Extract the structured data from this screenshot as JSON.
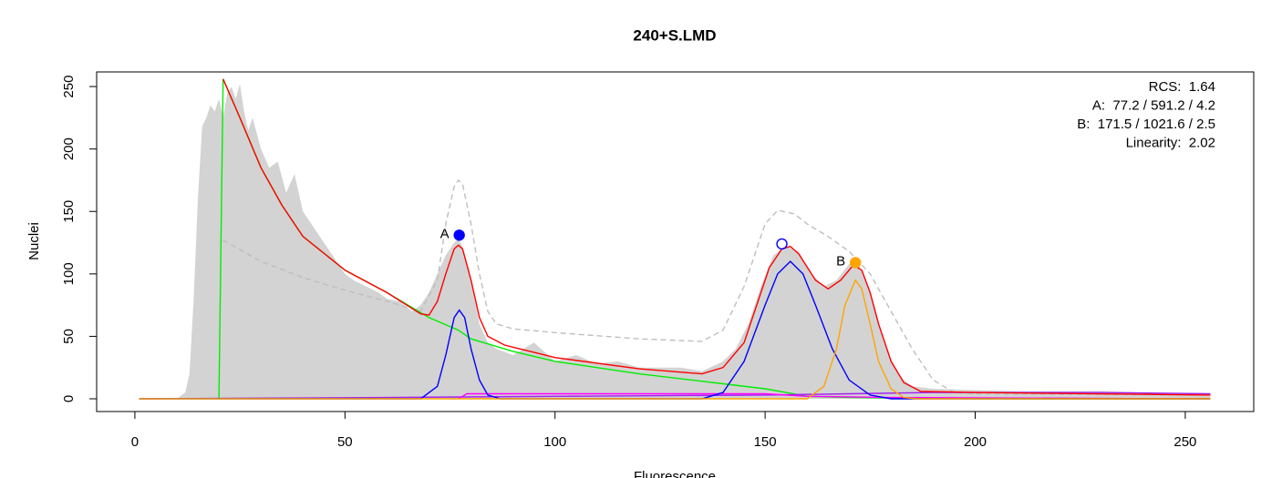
{
  "chart_data": {
    "type": "line",
    "title": "240+S.LMD",
    "x_label": "Fluorescence",
    "y_label": "Nuclei",
    "xlim": [
      -9.1,
      266.3
    ],
    "ylim": [
      -10.2,
      261.7
    ],
    "xticks": [
      0,
      50,
      100,
      150,
      200,
      250
    ],
    "yticks": [
      0,
      50,
      100,
      150,
      200,
      250
    ],
    "series": [
      {
        "style": "area",
        "color": "#d3d3d3",
        "x": [
          0,
          10,
          12,
          13,
          14,
          15,
          16,
          17,
          18,
          19,
          20,
          21,
          22,
          23,
          24,
          25,
          26,
          27,
          28,
          30,
          32,
          34,
          36,
          38,
          40,
          42,
          44,
          46,
          48,
          50,
          52,
          55,
          58,
          60,
          63,
          66,
          68,
          70,
          72,
          74,
          76,
          77,
          78,
          80,
          82,
          84,
          86,
          90,
          95,
          100,
          105,
          110,
          115,
          120,
          125,
          130,
          135,
          140,
          143,
          146,
          149,
          152,
          155,
          158,
          161,
          164,
          167,
          170,
          172,
          174,
          176,
          178,
          180,
          182,
          185,
          190,
          200,
          210,
          220,
          230,
          240,
          250,
          256
        ],
        "values": [
          0,
          0,
          5,
          20,
          80,
          160,
          218,
          225,
          235,
          230,
          240,
          225,
          245,
          250,
          240,
          252,
          230,
          215,
          225,
          200,
          185,
          190,
          165,
          180,
          150,
          140,
          130,
          120,
          110,
          100,
          95,
          90,
          85,
          80,
          78,
          70,
          75,
          85,
          100,
          115,
          125,
          128,
          122,
          95,
          60,
          45,
          40,
          35,
          45,
          30,
          35,
          28,
          30,
          25,
          25,
          25,
          22,
          30,
          40,
          60,
          90,
          115,
          122,
          118,
          100,
          90,
          95,
          108,
          110,
          95,
          75,
          50,
          30,
          18,
          10,
          8,
          7,
          6,
          6,
          6,
          5,
          4,
          2
        ]
      },
      {
        "style": "dashed",
        "color": "#bebebe",
        "x": [
          21,
          30,
          40,
          50,
          60,
          68,
          72,
          74,
          76,
          77,
          78,
          80,
          82,
          84,
          86,
          90,
          100,
          120,
          135,
          140,
          145,
          150,
          153,
          157,
          160,
          165,
          170,
          175,
          180,
          185,
          190,
          195,
          200,
          256
        ],
        "values": [
          127,
          110,
          97,
          87,
          78,
          70,
          95,
          140,
          170,
          175,
          172,
          140,
          100,
          70,
          60,
          56,
          53,
          48,
          46,
          55,
          90,
          140,
          151,
          148,
          140,
          130,
          118,
          100,
          70,
          40,
          15,
          5,
          4,
          3
        ]
      },
      {
        "style": "line",
        "color": "#00ee00",
        "x": [
          20,
          21,
          25,
          30,
          35,
          40,
          50,
          60,
          70,
          77,
          80,
          90,
          100,
          120,
          140,
          150,
          155,
          160,
          170,
          200,
          256
        ],
        "values": [
          0,
          256,
          225,
          185,
          155,
          130,
          103,
          85,
          65,
          55,
          48,
          38,
          30,
          20,
          12,
          8,
          5,
          2,
          1,
          0,
          0
        ]
      },
      {
        "style": "line",
        "color": "#a020f0",
        "x": [
          1,
          60,
          100,
          150,
          170,
          190,
          200,
          230,
          256
        ],
        "values": [
          0,
          1,
          2,
          3,
          4,
          5,
          5,
          5,
          4
        ]
      },
      {
        "style": "line",
        "color": "#ff00ff",
        "x": [
          77,
          79,
          150,
          160,
          180,
          256
        ],
        "values": [
          0,
          4,
          4,
          2,
          1,
          0
        ]
      },
      {
        "style": "line",
        "color": "#0000ff",
        "x": [
          1,
          68,
          72,
          74,
          76,
          77.2,
          78.5,
          80,
          82,
          84,
          87,
          135,
          140,
          145,
          150,
          153,
          156,
          159,
          162,
          166,
          170,
          175,
          180,
          256
        ],
        "values": [
          0,
          0,
          10,
          35,
          65,
          71,
          65,
          40,
          15,
          3,
          0,
          0,
          5,
          30,
          75,
          100,
          110,
          100,
          75,
          40,
          15,
          3,
          0,
          0
        ]
      },
      {
        "style": "line",
        "color": "#ffa500",
        "x": [
          1,
          160,
          164,
          167,
          169,
          171.5,
          173,
          175,
          177,
          180,
          183,
          186,
          256
        ],
        "values": [
          0,
          0,
          10,
          40,
          75,
          95,
          88,
          60,
          30,
          8,
          1,
          0,
          0
        ]
      },
      {
        "style": "line",
        "color": "#ff0000",
        "x": [
          21,
          25,
          30,
          35,
          40,
          50,
          60,
          68,
          70,
          72,
          74,
          76,
          77,
          78,
          80,
          82,
          84,
          88,
          100,
          120,
          135,
          140,
          145,
          148,
          151,
          154,
          156,
          158,
          162,
          165,
          168,
          171,
          173,
          175,
          177,
          180,
          183,
          187,
          200,
          256
        ],
        "values": [
          256,
          225,
          185,
          155,
          130,
          103,
          85,
          68,
          67,
          78,
          100,
          120,
          123,
          120,
          95,
          65,
          50,
          43,
          33,
          24,
          20,
          25,
          45,
          75,
          105,
          120,
          122,
          116,
          95,
          88,
          95,
          107,
          103,
          85,
          60,
          30,
          13,
          6,
          5,
          3
        ]
      }
    ],
    "markers": [
      {
        "label": "A",
        "x": 77.2,
        "y": 131,
        "color": "#0000ff",
        "filled": true
      },
      {
        "x": 154,
        "y": 124,
        "color": "#0000ff",
        "filled": false
      },
      {
        "label": "B",
        "x": 171.5,
        "y": 109,
        "color": "#ffa500",
        "filled": true
      }
    ],
    "legend": [
      {
        "text": "RCS:  1.64",
        "color": "#000000"
      },
      {
        "text": "A:  77.2 / 591.2 / 4.2",
        "color": "#0000ff"
      },
      {
        "text": "B:  171.5 / 1021.6 / 2.5",
        "color": "#ffa500"
      },
      {
        "text": "Linearity:  2.02",
        "color": "#000000"
      }
    ]
  }
}
